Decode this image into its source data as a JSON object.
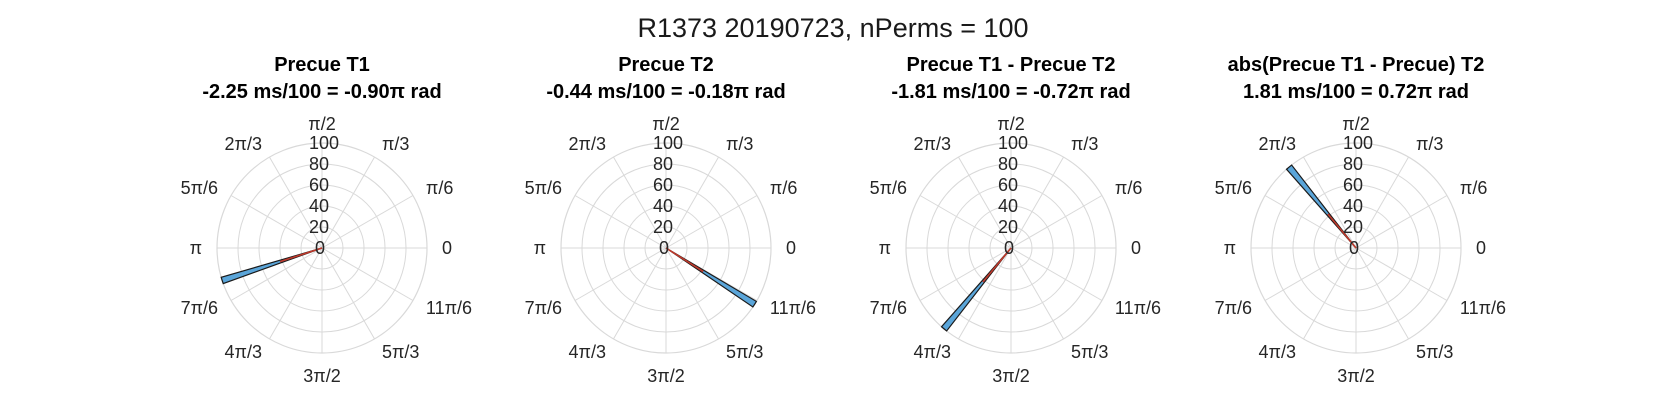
{
  "figure": {
    "title": "R1373 20190723, nPerms = 100"
  },
  "chart_data": [
    {
      "type": "polar-histogram",
      "title": "Precue T1",
      "subtitle": "-2.25 ms/100 = -0.90π rad",
      "angle_rad": -2.827,
      "count": 100,
      "bin_width_rad": 0.0628,
      "rlim": [
        0,
        100
      ],
      "r_ticks": [
        "0",
        "20",
        "40",
        "60",
        "80",
        "100"
      ],
      "theta_ticks": [
        "0",
        "π/6",
        "π/3",
        "π/2",
        "2π/3",
        "5π/6",
        "π",
        "7π/6",
        "4π/3",
        "3π/2",
        "5π/3",
        "11π/6"
      ]
    },
    {
      "type": "polar-histogram",
      "title": "Precue T2",
      "subtitle": "-0.44 ms/100 = -0.18π rad",
      "angle_rad": -0.565,
      "count": 100,
      "bin_width_rad": 0.0628,
      "rlim": [
        0,
        100
      ],
      "r_ticks": [
        "0",
        "20",
        "40",
        "60",
        "80",
        "100"
      ],
      "theta_ticks": [
        "0",
        "π/6",
        "π/3",
        "π/2",
        "2π/3",
        "5π/6",
        "π",
        "7π/6",
        "4π/3",
        "3π/2",
        "5π/3",
        "11π/6"
      ]
    },
    {
      "type": "polar-histogram",
      "title": "Precue T1 - Precue T2",
      "subtitle": "-1.81 ms/100 = -0.72π rad",
      "angle_rad": -2.262,
      "count": 100,
      "bin_width_rad": 0.0628,
      "rlim": [
        0,
        100
      ],
      "r_ticks": [
        "0",
        "20",
        "40",
        "60",
        "80",
        "100"
      ],
      "theta_ticks": [
        "0",
        "π/6",
        "π/3",
        "π/2",
        "2π/3",
        "5π/6",
        "π",
        "7π/6",
        "4π/3",
        "3π/2",
        "5π/3",
        "11π/6"
      ]
    },
    {
      "type": "polar-histogram",
      "title": "abs(Precue T1 - Precue) T2",
      "subtitle": "1.81 ms/100 = 0.72π rad",
      "angle_rad": 2.262,
      "count": 100,
      "bin_width_rad": 0.0628,
      "rlim": [
        0,
        100
      ],
      "r_ticks": [
        "0",
        "20",
        "40",
        "60",
        "80",
        "100"
      ],
      "theta_ticks": [
        "0",
        "π/6",
        "π/3",
        "π/2",
        "2π/3",
        "5π/6",
        "π",
        "7π/6",
        "4π/3",
        "3π/2",
        "5π/3",
        "11π/6"
      ]
    }
  ],
  "colors": {
    "bar_fill": "#5aa5d9",
    "bar_edge": "#1a1a1a",
    "mean_line": "#c0392b",
    "grid": "#d9d9d9",
    "text": "#262626"
  }
}
